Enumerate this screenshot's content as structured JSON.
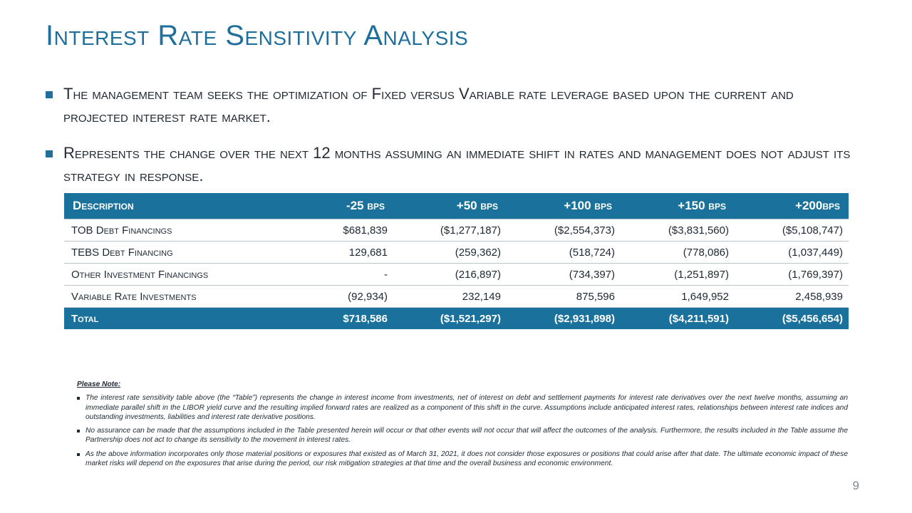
{
  "title": "Interest Rate Sensitivity Analysis",
  "bullets": [
    "The management team seeks the optimization of Fixed versus Variable rate leverage based upon the current and projected interest rate market.",
    "Represents the change over the next 12 months assuming an immediate shift in rates and management does not adjust its strategy in response."
  ],
  "table": {
    "headers": [
      "Description",
      "-25 bps",
      "+50 bps",
      "+100 bps",
      "+150 bps",
      "+200bps"
    ],
    "rows": [
      [
        "TOB Debt Financings",
        "$681,839",
        "($1,277,187)",
        "($2,554,373)",
        "($3,831,560)",
        "($5,108,747)"
      ],
      [
        "TEBS Debt Financing",
        "129,681",
        "(259,362)",
        "(518,724)",
        "(778,086)",
        "(1,037,449)"
      ],
      [
        "Other Investment Financings",
        "-",
        "(216,897)",
        "(734,397)",
        "(1,251,897)",
        "(1,769,397)"
      ],
      [
        "Variable Rate Investments",
        "(92,934)",
        "232,149",
        "875,596",
        "1,649,952",
        "2,458,939"
      ]
    ],
    "total": [
      "Total",
      "$718,586",
      "($1,521,297)",
      "($2,931,898)",
      "($4,211,591)",
      "($5,456,654)"
    ]
  },
  "notes": {
    "heading": "Please Note:",
    "items": [
      "The interest rate sensitivity table above (the “Table”) represents the change in interest income from investments, net of interest on debt and settlement payments for interest rate derivatives over the next twelve months, assuming an immediate parallel shift in the LIBOR yield curve and the resulting implied forward rates are realized as a component of this shift in the curve. Assumptions include anticipated interest rates, relationships between interest rate indices and outstanding investments, liabilities and interest rate derivative positions.",
      "No assurance can be made that the assumptions included in the Table presented herein will occur or that other events will not occur that will affect the outcomes of the analysis. Furthermore, the results included in the Table assume the Partnership does not act to change its sensitivity to the movement in interest rates.",
      "As the above information incorporates only those material positions or exposures that existed as of March 31, 2021, it does not consider those exposures or positions that could arise after that date. The ultimate economic impact of these market risks will depend on the exposures that arise during the period, our risk mitigation strategies at that time and the overall business and economic environment."
    ]
  },
  "page_number": "9",
  "colors": {
    "accent": "#1a729c",
    "title": "#1f6e9c"
  }
}
